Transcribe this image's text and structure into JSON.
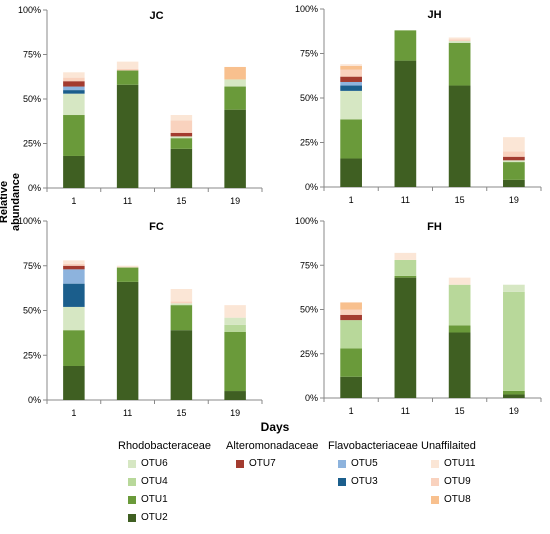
{
  "ylabel": "Relative abundance",
  "xlabel": "Days",
  "colors": {
    "OTU2": "#3f5f22",
    "OTU1": "#6a9a3a",
    "OTU4": "#b8d89a",
    "OTU6": "#d6e7c3",
    "OTU7": "#a33b2f",
    "OTU3": "#1b5e8c",
    "OTU5": "#8db3dd",
    "OTU8": "#f8c08e",
    "OTU9": "#f9d2be",
    "OTU11": "#fbe6d6"
  },
  "legend": {
    "groups": [
      {
        "title": "Rhodobacteraceae",
        "items": [
          "OTU6",
          "OTU4",
          "OTU1",
          "OTU2"
        ]
      },
      {
        "title": "Alteromonadaceae",
        "items": [
          "OTU7"
        ]
      },
      {
        "title": "Flavobacteriaceae",
        "items": [
          "OTU5",
          "OTU3"
        ]
      },
      {
        "title": "Unaffilaited",
        "items": [
          "OTU11",
          "OTU9",
          "OTU8"
        ]
      }
    ]
  },
  "chart_data": [
    {
      "type": "bar",
      "stacked": true,
      "title": "JC",
      "categories": [
        "1",
        "11",
        "15",
        "19"
      ],
      "ylim": [
        0,
        100
      ],
      "yticks": [
        "0%",
        "25%",
        "50%",
        "75%",
        "100%"
      ],
      "series": [
        {
          "name": "OTU2",
          "values": [
            18,
            58,
            22,
            44
          ]
        },
        {
          "name": "OTU1",
          "values": [
            23,
            8,
            6,
            13
          ]
        },
        {
          "name": "OTU4",
          "values": [
            0,
            0,
            0,
            0
          ]
        },
        {
          "name": "OTU6",
          "values": [
            12,
            0,
            1,
            4
          ]
        },
        {
          "name": "OTU3",
          "values": [
            2,
            0,
            0,
            0
          ]
        },
        {
          "name": "OTU5",
          "values": [
            2,
            0,
            0,
            0
          ]
        },
        {
          "name": "OTU7",
          "values": [
            3,
            0,
            2,
            0
          ]
        },
        {
          "name": "OTU9",
          "values": [
            2,
            1,
            7,
            0
          ]
        },
        {
          "name": "OTU8",
          "values": [
            0,
            0,
            0,
            7
          ]
        },
        {
          "name": "OTU11",
          "values": [
            3,
            4,
            3,
            0
          ]
        }
      ]
    },
    {
      "type": "bar",
      "stacked": true,
      "title": "JH",
      "categories": [
        "1",
        "11",
        "15",
        "19"
      ],
      "ylim": [
        0,
        100
      ],
      "yticks": [
        "0%",
        "25%",
        "50%",
        "75%",
        "100%"
      ],
      "series": [
        {
          "name": "OTU2",
          "values": [
            16,
            71,
            57,
            4
          ]
        },
        {
          "name": "OTU1",
          "values": [
            22,
            17,
            24,
            10
          ]
        },
        {
          "name": "OTU4",
          "values": [
            0,
            0,
            0,
            0
          ]
        },
        {
          "name": "OTU6",
          "values": [
            16,
            0,
            1,
            1
          ]
        },
        {
          "name": "OTU3",
          "values": [
            3,
            0,
            0,
            0
          ]
        },
        {
          "name": "OTU5",
          "values": [
            2,
            0,
            0,
            0
          ]
        },
        {
          "name": "OTU7",
          "values": [
            3,
            0,
            0,
            2
          ]
        },
        {
          "name": "OTU9",
          "values": [
            4,
            0,
            1,
            3
          ]
        },
        {
          "name": "OTU8",
          "values": [
            2,
            0,
            0,
            0
          ]
        },
        {
          "name": "OTU11",
          "values": [
            1,
            0,
            1,
            8
          ]
        }
      ]
    },
    {
      "type": "bar",
      "stacked": true,
      "title": "FC",
      "categories": [
        "1",
        "11",
        "15",
        "19"
      ],
      "ylim": [
        0,
        100
      ],
      "yticks": [
        "0%",
        "25%",
        "50%",
        "75%",
        "100%"
      ],
      "series": [
        {
          "name": "OTU2",
          "values": [
            19,
            66,
            39,
            5
          ]
        },
        {
          "name": "OTU1",
          "values": [
            20,
            8,
            14,
            33
          ]
        },
        {
          "name": "OTU4",
          "values": [
            0,
            0,
            0,
            4
          ]
        },
        {
          "name": "OTU6",
          "values": [
            13,
            0,
            1,
            4
          ]
        },
        {
          "name": "OTU3",
          "values": [
            13,
            0,
            0,
            0
          ]
        },
        {
          "name": "OTU5",
          "values": [
            8,
            0,
            0,
            0
          ]
        },
        {
          "name": "OTU7",
          "values": [
            2,
            0,
            0,
            0
          ]
        },
        {
          "name": "OTU9",
          "values": [
            1,
            0,
            1,
            0
          ]
        },
        {
          "name": "OTU8",
          "values": [
            0,
            0,
            0,
            0
          ]
        },
        {
          "name": "OTU11",
          "values": [
            2,
            1,
            7,
            7
          ]
        }
      ]
    },
    {
      "type": "bar",
      "stacked": true,
      "title": "FH",
      "categories": [
        "1",
        "11",
        "15",
        "19"
      ],
      "ylim": [
        0,
        100
      ],
      "yticks": [
        "0%",
        "25%",
        "50%",
        "75%",
        "100%"
      ],
      "series": [
        {
          "name": "OTU2",
          "values": [
            12,
            68,
            37,
            2
          ]
        },
        {
          "name": "OTU1",
          "values": [
            16,
            1,
            4,
            2
          ]
        },
        {
          "name": "OTU4",
          "values": [
            16,
            9,
            23,
            56
          ]
        },
        {
          "name": "OTU6",
          "values": [
            0,
            0,
            0,
            4
          ]
        },
        {
          "name": "OTU3",
          "values": [
            0,
            0,
            0,
            0
          ]
        },
        {
          "name": "OTU5",
          "values": [
            0,
            0,
            0,
            0
          ]
        },
        {
          "name": "OTU7",
          "values": [
            3,
            0,
            0,
            0
          ]
        },
        {
          "name": "OTU9",
          "values": [
            3,
            0,
            0,
            0
          ]
        },
        {
          "name": "OTU8",
          "values": [
            4,
            0,
            0,
            0
          ]
        },
        {
          "name": "OTU11",
          "values": [
            0,
            4,
            4,
            0
          ]
        }
      ]
    }
  ]
}
